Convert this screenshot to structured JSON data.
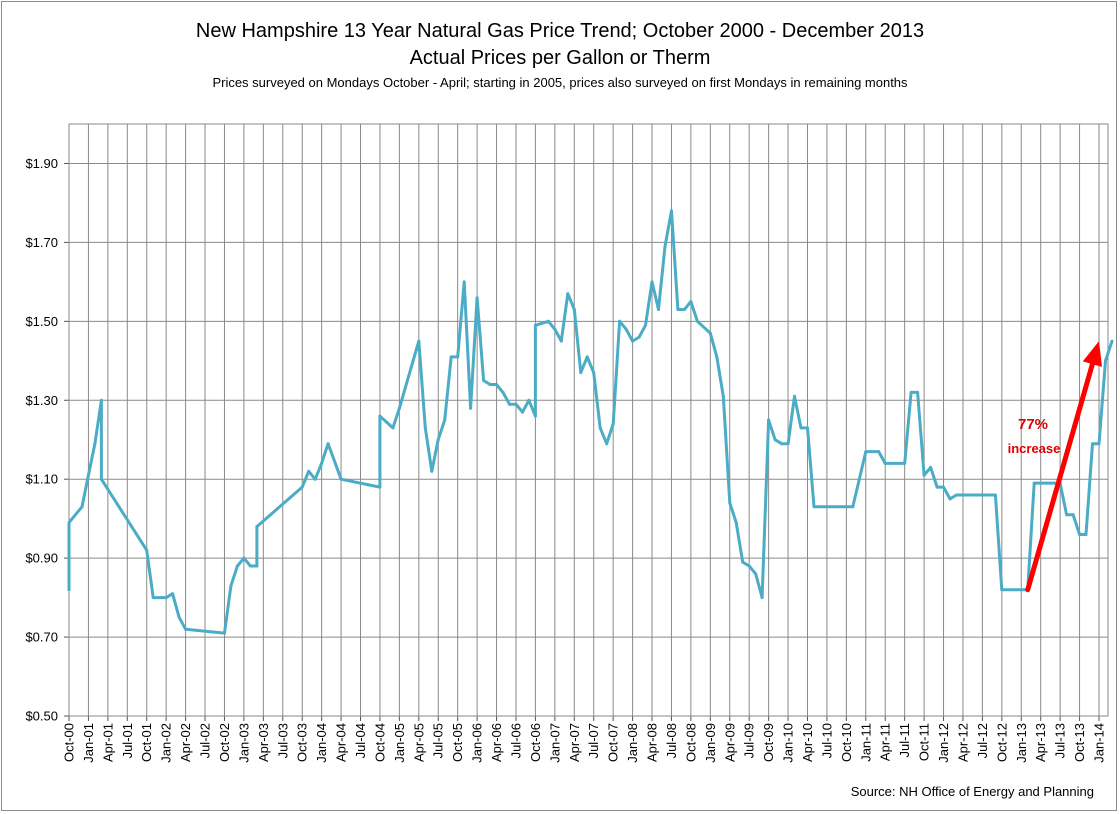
{
  "chart_data": {
    "type": "line",
    "title": "New Hampshire 13 Year Natural Gas Price Trend; October 2000 - December 2013",
    "subtitle": "Actual Prices per Gallon or Therm",
    "note": "Prices surveyed on Mondays October - April; starting in 2005, prices also surveyed on first Mondays in remaining months",
    "source": "Source:  NH Office of Energy and Planning",
    "ylim": [
      0.5,
      2.0
    ],
    "y_ticks": [
      0.5,
      0.7,
      0.9,
      1.1,
      1.3,
      1.5,
      1.7,
      1.9
    ],
    "y_tick_labels": [
      "$0.50",
      "$0.70",
      "$0.90",
      "$1.10",
      "$1.30",
      "$1.50",
      "$1.70",
      "$1.90"
    ],
    "x_tick_labels": [
      "Oct-00",
      "Jan-01",
      "Apr-01",
      "Jul-01",
      "Oct-01",
      "Jan-02",
      "Apr-02",
      "Jul-02",
      "Oct-02",
      "Jan-03",
      "Apr-03",
      "Jul-03",
      "Oct-03",
      "Jan-04",
      "Apr-04",
      "Jul-04",
      "Oct-04",
      "Jan-05",
      "Apr-05",
      "Jul-05",
      "Oct-05",
      "Jan-06",
      "Apr-06",
      "Jul-06",
      "Oct-06",
      "Jan-07",
      "Apr-07",
      "Jul-07",
      "Oct-07",
      "Jan-08",
      "Apr-08",
      "Jul-08",
      "Oct-08",
      "Jan-09",
      "Apr-09",
      "Jul-09",
      "Oct-09",
      "Jan-10",
      "Apr-10",
      "Jul-10",
      "Oct-10",
      "Jan-11",
      "Apr-11",
      "Jul-11",
      "Oct-11",
      "Jan-12",
      "Apr-12",
      "Jul-12",
      "Oct-12",
      "Jan-13",
      "Apr-13",
      "Jul-13",
      "Oct-13",
      "Jan-14"
    ],
    "grid": "vertical and horizontal",
    "series": [
      {
        "color": "#4bacc6",
        "points": [
          [
            "Oct-00",
            0.82
          ],
          [
            "Oct-00",
            0.99
          ],
          [
            "Dec-00",
            1.03
          ],
          [
            "Jan-01",
            1.11
          ],
          [
            "Feb-01",
            1.19
          ],
          [
            "Mar-01",
            1.3
          ],
          [
            "Mar-01",
            1.1
          ],
          [
            "Oct-01",
            0.92
          ],
          [
            "Nov-01",
            0.8
          ],
          [
            "Jan-02",
            0.8
          ],
          [
            "Feb-02",
            0.81
          ],
          [
            "Mar-02",
            0.75
          ],
          [
            "Apr-02",
            0.72
          ],
          [
            "Oct-02",
            0.71
          ],
          [
            "Nov-02",
            0.83
          ],
          [
            "Dec-02",
            0.88
          ],
          [
            "Jan-03",
            0.9
          ],
          [
            "Feb-03",
            0.88
          ],
          [
            "Mar-03",
            0.88
          ],
          [
            "Mar-03",
            0.98
          ],
          [
            "Oct-03",
            1.08
          ],
          [
            "Nov-03",
            1.12
          ],
          [
            "Dec-03",
            1.1
          ],
          [
            "Jan-04",
            1.14
          ],
          [
            "Feb-04",
            1.19
          ],
          [
            "Apr-04",
            1.1
          ],
          [
            "Oct-04",
            1.08
          ],
          [
            "Oct-04",
            1.26
          ],
          [
            "Dec-04",
            1.23
          ],
          [
            "Jan-05",
            1.28
          ],
          [
            "Apr-05",
            1.45
          ],
          [
            "May-05",
            1.23
          ],
          [
            "Jun-05",
            1.12
          ],
          [
            "Jul-05",
            1.2
          ],
          [
            "Aug-05",
            1.25
          ],
          [
            "Sep-05",
            1.41
          ],
          [
            "Oct-05",
            1.41
          ],
          [
            "Nov-05",
            1.6
          ],
          [
            "Dec-05",
            1.28
          ],
          [
            "Jan-06",
            1.56
          ],
          [
            "Feb-06",
            1.35
          ],
          [
            "Mar-06",
            1.34
          ],
          [
            "Apr-06",
            1.34
          ],
          [
            "May-06",
            1.32
          ],
          [
            "Jun-06",
            1.29
          ],
          [
            "Jul-06",
            1.29
          ],
          [
            "Aug-06",
            1.27
          ],
          [
            "Sep-06",
            1.3
          ],
          [
            "Oct-06",
            1.26
          ],
          [
            "Oct-06",
            1.49
          ],
          [
            "Dec-06",
            1.5
          ],
          [
            "Jan-07",
            1.48
          ],
          [
            "Feb-07",
            1.45
          ],
          [
            "Mar-07",
            1.57
          ],
          [
            "Apr-07",
            1.53
          ],
          [
            "May-07",
            1.37
          ],
          [
            "Jun-07",
            1.41
          ],
          [
            "Jul-07",
            1.37
          ],
          [
            "Aug-07",
            1.23
          ],
          [
            "Sep-07",
            1.19
          ],
          [
            "Oct-07",
            1.24
          ],
          [
            "Nov-07",
            1.5
          ],
          [
            "Dec-07",
            1.48
          ],
          [
            "Jan-08",
            1.45
          ],
          [
            "Feb-08",
            1.46
          ],
          [
            "Mar-08",
            1.49
          ],
          [
            "Apr-08",
            1.6
          ],
          [
            "May-08",
            1.53
          ],
          [
            "Jun-08",
            1.69
          ],
          [
            "Jul-08",
            1.78
          ],
          [
            "Aug-08",
            1.53
          ],
          [
            "Sep-08",
            1.53
          ],
          [
            "Oct-08",
            1.55
          ],
          [
            "Nov-08",
            1.5
          ],
          [
            "Jan-09",
            1.47
          ],
          [
            "Feb-09",
            1.41
          ],
          [
            "Mar-09",
            1.31
          ],
          [
            "Apr-09",
            1.04
          ],
          [
            "May-09",
            0.99
          ],
          [
            "Jun-09",
            0.89
          ],
          [
            "Jul-09",
            0.88
          ],
          [
            "Aug-09",
            0.86
          ],
          [
            "Sep-09",
            0.8
          ],
          [
            "Oct-09",
            1.25
          ],
          [
            "Nov-09",
            1.2
          ],
          [
            "Dec-09",
            1.19
          ],
          [
            "Jan-10",
            1.19
          ],
          [
            "Feb-10",
            1.31
          ],
          [
            "Mar-10",
            1.23
          ],
          [
            "Apr-10",
            1.23
          ],
          [
            "May-10",
            1.03
          ],
          [
            "Jul-10",
            1.03
          ],
          [
            "Oct-10",
            1.03
          ],
          [
            "Nov-10",
            1.03
          ],
          [
            "Dec-10",
            1.1
          ],
          [
            "Jan-11",
            1.17
          ],
          [
            "Mar-11",
            1.17
          ],
          [
            "Apr-11",
            1.14
          ],
          [
            "Jul-11",
            1.14
          ],
          [
            "Aug-11",
            1.32
          ],
          [
            "Sep-11",
            1.32
          ],
          [
            "Oct-11",
            1.11
          ],
          [
            "Nov-11",
            1.13
          ],
          [
            "Dec-11",
            1.08
          ],
          [
            "Jan-12",
            1.08
          ],
          [
            "Feb-12",
            1.05
          ],
          [
            "Mar-12",
            1.06
          ],
          [
            "Sep-12",
            1.06
          ],
          [
            "Oct-12",
            0.82
          ],
          [
            "Feb-13",
            0.82
          ],
          [
            "Mar-13",
            1.09
          ],
          [
            "Jul-13",
            1.09
          ],
          [
            "Aug-13",
            1.01
          ],
          [
            "Sep-13",
            1.01
          ],
          [
            "Oct-13",
            0.96
          ],
          [
            "Nov-13",
            0.96
          ],
          [
            "Dec-13",
            1.19
          ],
          [
            "Jan-14",
            1.19
          ],
          [
            "Feb-14",
            1.4
          ],
          [
            "Mar-14",
            1.45
          ]
        ]
      }
    ],
    "annotations": [
      {
        "text": "77%",
        "color": "#e00000"
      },
      {
        "text": "increase",
        "color": "#e00000"
      },
      {
        "type": "arrow",
        "color": "#ff0000",
        "from": [
          "Feb-13",
          0.82
        ],
        "to": [
          "Jan-14",
          1.45
        ]
      }
    ]
  }
}
